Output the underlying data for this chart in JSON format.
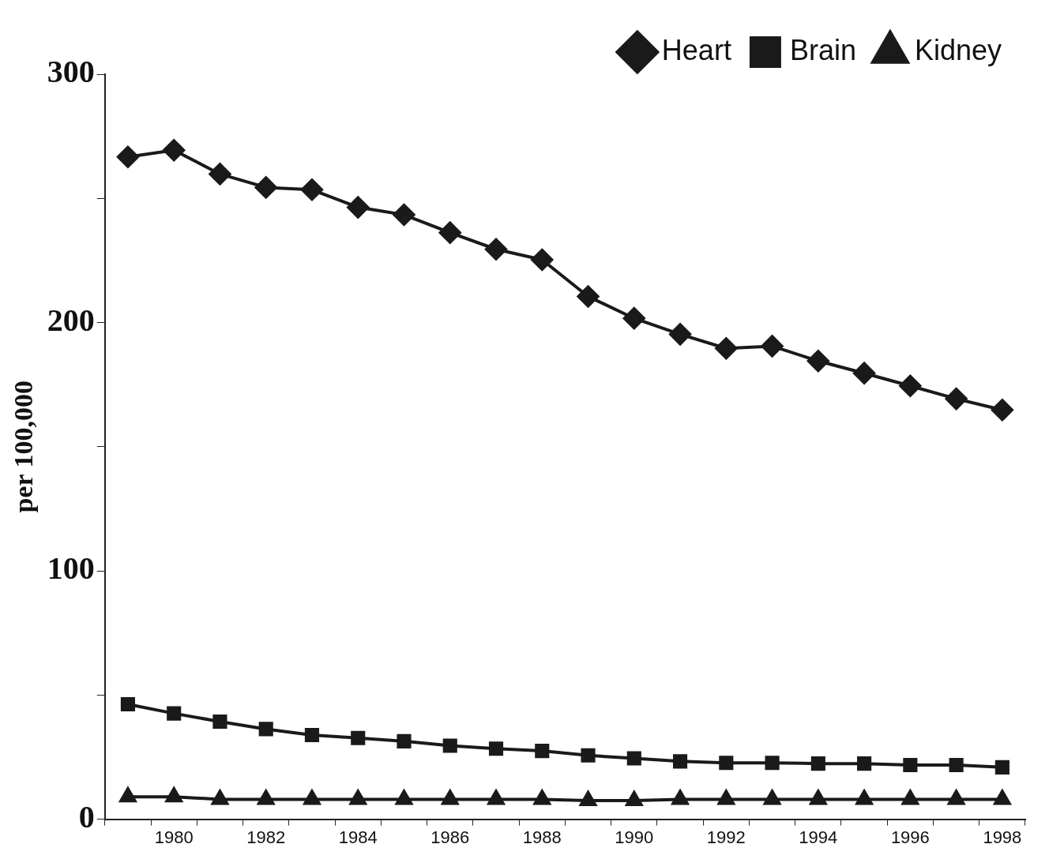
{
  "chart_data": {
    "type": "line",
    "ylabel": "per 100,000",
    "categories": [
      null,
      "1980",
      null,
      "1982",
      null,
      "1984",
      null,
      "1986",
      null,
      "1988",
      null,
      "1990",
      null,
      "1992",
      null,
      "1994",
      null,
      "1996",
      null,
      "1998"
    ],
    "series": [
      {
        "name": "Heart",
        "color": "#1a1a1a",
        "marker": "diamond",
        "values": [
          266.7,
          269.4,
          259.8,
          254.4,
          253.5,
          246.4,
          243.4,
          236.2,
          229.5,
          225.3,
          210.5,
          201.7,
          195.3,
          189.6,
          190.5,
          184.5,
          179.6,
          174.5,
          169.3,
          164.8
        ]
      },
      {
        "name": "Brain",
        "color": "#1a1a1a",
        "marker": "square",
        "values": [
          46.3,
          42.6,
          39.3,
          36.3,
          33.9,
          32.7,
          31.4,
          29.6,
          28.4,
          27.5,
          25.7,
          24.5,
          23.3,
          22.7,
          22.7,
          22.4,
          22.4,
          21.8,
          21.8,
          20.9
        ]
      },
      {
        "name": "Kidney",
        "color": "#1a1a1a",
        "marker": "triangle",
        "values": [
          9,
          9,
          8,
          8,
          8,
          8,
          8,
          8,
          8,
          8,
          7.5,
          7.5,
          8,
          8,
          8,
          8,
          8,
          8,
          8,
          8
        ]
      }
    ],
    "ylim": [
      0,
      300
    ],
    "yticks": [
      0,
      {
        "value": 50,
        "label": null
      },
      100,
      {
        "value": 150,
        "label": null
      },
      200,
      {
        "value": 250,
        "label": null
      },
      300
    ],
    "grid": false,
    "legend": "top right",
    "line_style": "solid"
  }
}
